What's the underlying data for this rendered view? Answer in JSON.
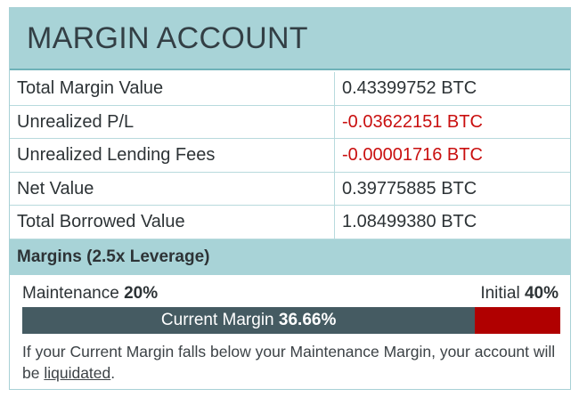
{
  "header": {
    "title": "MARGIN ACCOUNT"
  },
  "rows": [
    {
      "label": "Total Margin Value",
      "value": "0.43399752 BTC",
      "negative": false
    },
    {
      "label": "Unrealized P/L",
      "value": "-0.03622151 BTC",
      "negative": true
    },
    {
      "label": "Unrealized Lending Fees",
      "value": "-0.00001716 BTC",
      "negative": true
    },
    {
      "label": "Net Value",
      "value": "0.39775885 BTC",
      "negative": false
    },
    {
      "label": "Total Borrowed Value",
      "value": "1.08499380 BTC",
      "negative": false
    }
  ],
  "margins": {
    "title": "Margins (2.5x Leverage)",
    "maintenance_label": "Maintenance",
    "maintenance_pct": "20%",
    "initial_label": "Initial",
    "initial_pct": "40%",
    "current_label": "Current Margin",
    "current_pct": "36.66%",
    "bar_fill_fraction": 0.8415,
    "note_before": "If your Current Margin falls below your Maintenance Margin, your account will be ",
    "note_link": "liquidated",
    "note_after": "."
  },
  "colors": {
    "header_bg": "#a8d3d7",
    "negative": "#c90f0f",
    "bar_fill": "#455b62",
    "bar_remaining": "#b00000"
  }
}
